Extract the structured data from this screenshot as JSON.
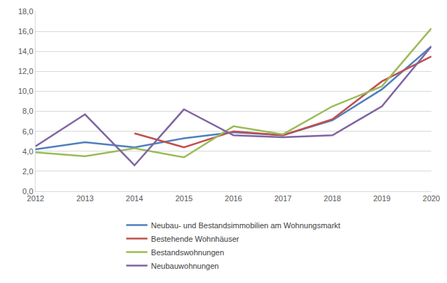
{
  "chart_data": {
    "type": "line",
    "categories": [
      "2012",
      "2013",
      "2014",
      "2015",
      "2016",
      "2017",
      "2018",
      "2019",
      "2020"
    ],
    "series": [
      {
        "name": "Neubau- und Bestandsimmobilien am Wohnungsmarkt",
        "color": "#4f7fc0",
        "values": [
          4.2,
          4.9,
          4.4,
          5.3,
          5.9,
          5.6,
          7.1,
          10.2,
          14.5
        ]
      },
      {
        "name": "Bestehende Wohnhäuser",
        "color": "#c0504d",
        "values": [
          null,
          null,
          5.8,
          4.4,
          6.0,
          5.6,
          7.2,
          11.0,
          13.5
        ]
      },
      {
        "name": "Bestandswohnungen",
        "color": "#9bbb59",
        "values": [
          3.9,
          3.5,
          4.3,
          3.4,
          6.5,
          5.7,
          8.5,
          10.5,
          16.3
        ]
      },
      {
        "name": "Neubauwohnungen",
        "color": "#8064a2",
        "values": [
          4.5,
          7.7,
          2.6,
          8.2,
          5.6,
          5.4,
          5.6,
          8.5,
          14.5
        ]
      }
    ],
    "ylim": [
      0,
      18
    ],
    "yticks": [
      {
        "value": 0,
        "label": "0,0"
      },
      {
        "value": 2,
        "label": "2,0"
      },
      {
        "value": 4,
        "label": "4,0"
      },
      {
        "value": 6,
        "label": "6,0"
      },
      {
        "value": 8,
        "label": "8,0"
      },
      {
        "value": 10,
        "label": "10,0"
      },
      {
        "value": 12,
        "label": "12,0"
      },
      {
        "value": 14,
        "label": "14,0"
      },
      {
        "value": 16,
        "label": "16,0"
      },
      {
        "value": 18,
        "label": "18,0"
      }
    ],
    "grid": true,
    "legend": "bottom"
  }
}
